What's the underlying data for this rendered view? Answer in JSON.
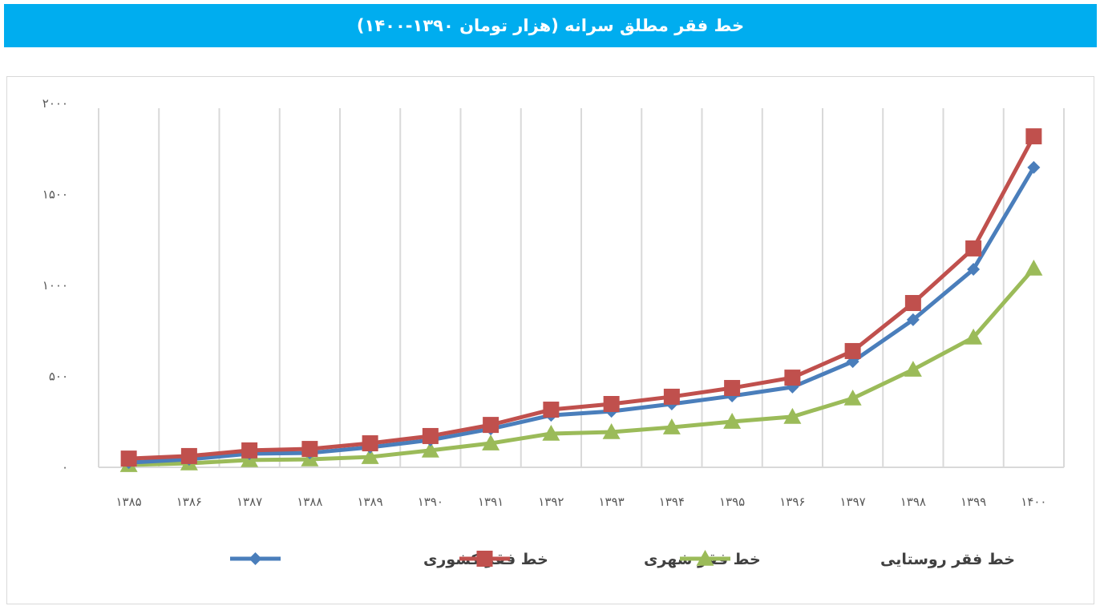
{
  "chart_data": {
    "type": "line",
    "title": "خط فقر مطلق سرانه (هزار تومان ۱۳۹۰-۱۴۰۰)",
    "xlabel": "",
    "ylabel": "",
    "categories": [
      "۱۳۸۵",
      "۱۳۸۶",
      "۱۳۸۷",
      "۱۳۸۸",
      "۱۳۸۹",
      "۱۳۹۰",
      "۱۳۹۱",
      "۱۳۹۲",
      "۱۳۹۳",
      "۱۳۹۴",
      "۱۳۹۵",
      "۱۳۹۶",
      "۱۳۹۷",
      "۱۳۹۸",
      "۱۳۹۹",
      "۱۴۰۰"
    ],
    "ylim": [
      0,
      2000
    ],
    "yticks": [
      0,
      500,
      1000,
      1500,
      2000
    ],
    "ytick_labels": [
      "۰",
      "۵۰۰",
      "۱۰۰۰",
      "۱۵۰۰",
      "۲۰۰۰"
    ],
    "grid": "vertical",
    "legend_position": "bottom",
    "series": [
      {
        "name": "خط فقر کشوری",
        "color": "#4a7ebb",
        "marker": "diamond",
        "values": [
          26,
          44,
          75,
          79,
          110,
          150,
          211,
          286,
          308,
          348,
          392,
          441,
          581,
          811,
          1088,
          1648
        ]
      },
      {
        "name": "خط فقر شهری",
        "color": "#c0504d",
        "marker": "square",
        "values": [
          48,
          62,
          93,
          101,
          132,
          172,
          233,
          317,
          348,
          388,
          436,
          493,
          639,
          903,
          1203,
          1819
        ]
      },
      {
        "name": "خط فقر روستایی",
        "color": "#9bbb59",
        "marker": "triangle",
        "values": [
          13,
          22,
          40,
          44,
          57,
          93,
          132,
          185,
          194,
          220,
          251,
          278,
          379,
          537,
          714,
          1093
        ]
      }
    ]
  },
  "colors": {
    "title_bar": "#00adef",
    "grid": "#d9d9d9"
  }
}
